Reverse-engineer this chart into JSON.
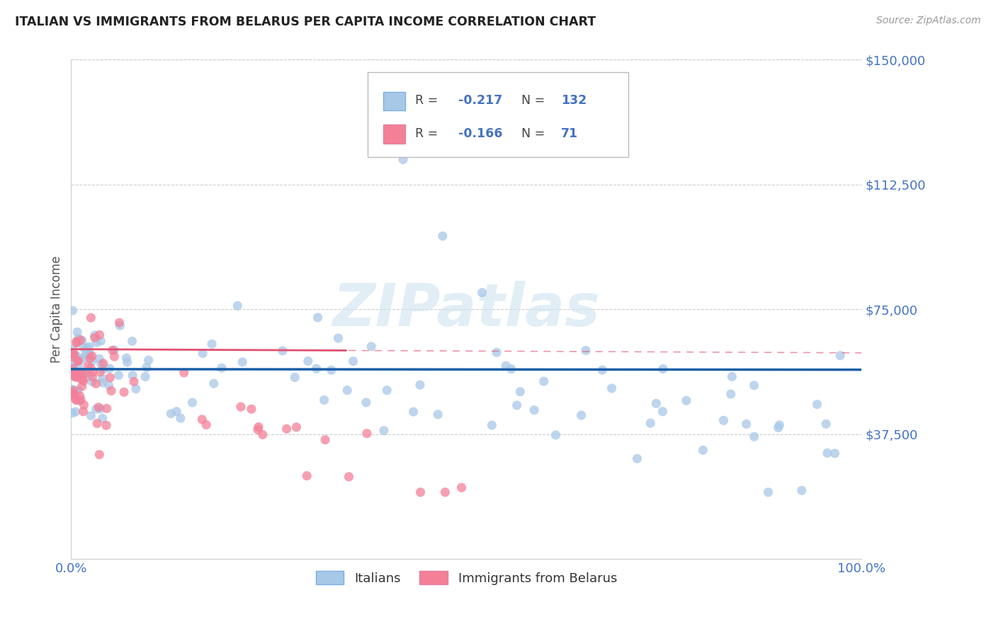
{
  "title": "ITALIAN VS IMMIGRANTS FROM BELARUS PER CAPITA INCOME CORRELATION CHART",
  "source": "Source: ZipAtlas.com",
  "ylabel": "Per Capita Income",
  "legend_label1": "Italians",
  "legend_label2": "Immigrants from Belarus",
  "r1": -0.217,
  "n1": 132,
  "r2": -0.166,
  "n2": 71,
  "blue_scatter": "#a8c8e8",
  "blue_line": "#1a5fa8",
  "pink_scatter": "#f48098",
  "pink_line": "#e05070",
  "text_color": "#4472c4",
  "title_color": "#222222",
  "grid_color": "#cccccc",
  "watermark": "ZIPatlas",
  "watermark_color": "#d0e4f0",
  "italian_intercept": 57000,
  "italian_slope": -170,
  "belarus_intercept": 63000,
  "belarus_slope": -1100
}
